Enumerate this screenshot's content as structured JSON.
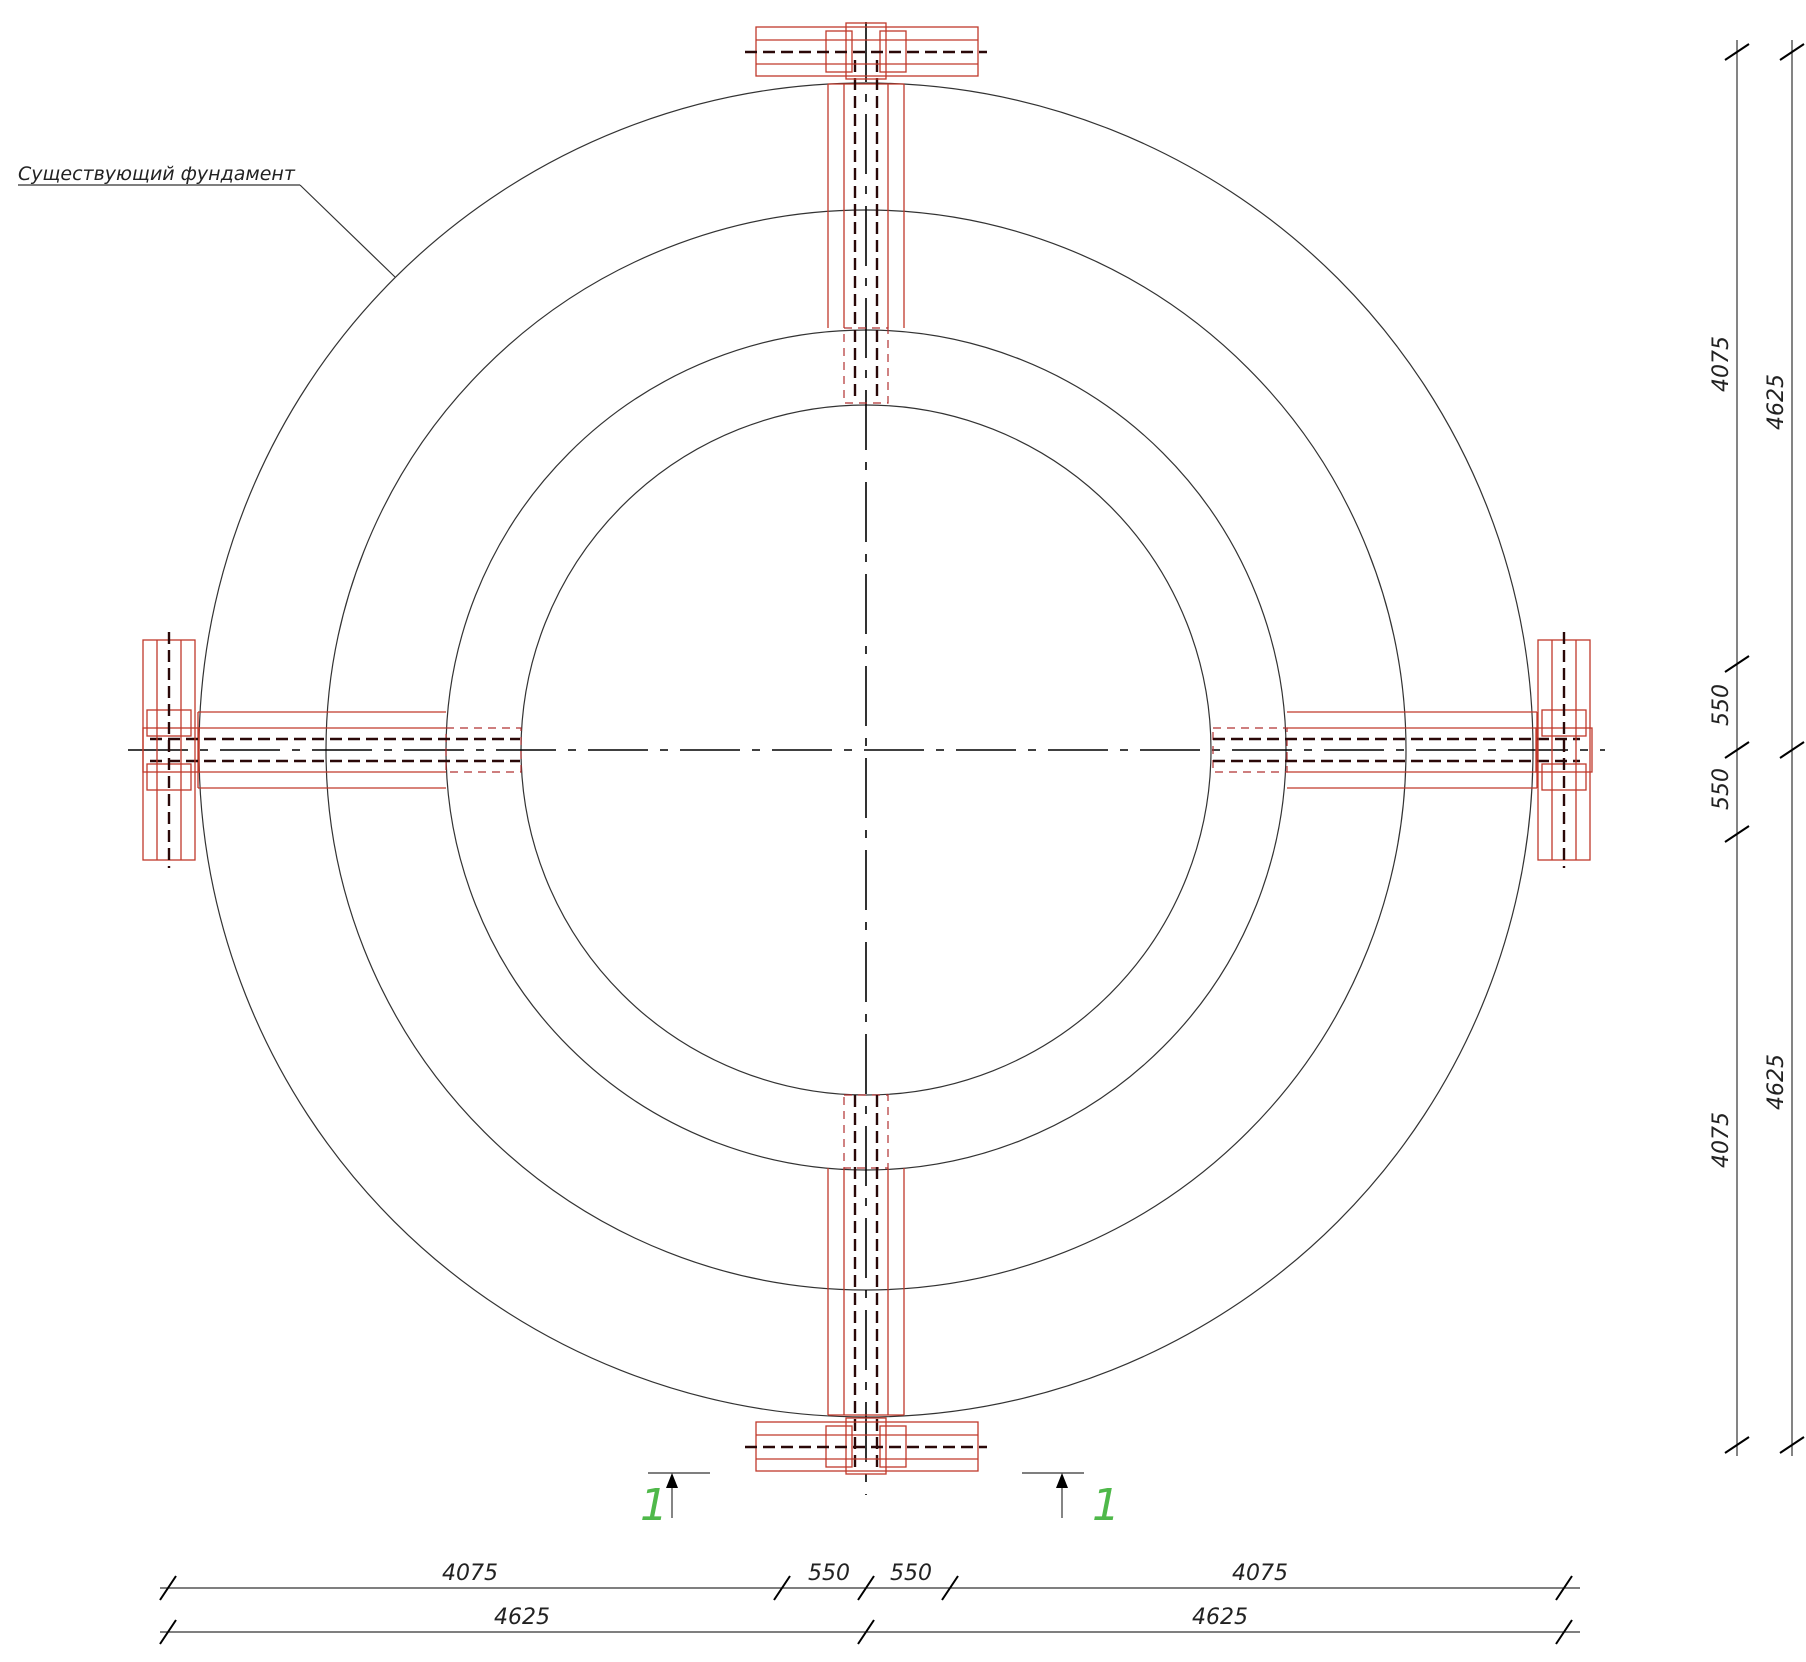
{
  "callout": {
    "label": "Существующий фундамент"
  },
  "section_marks": {
    "label": "1",
    "color": "#4fb84a"
  },
  "colors": {
    "existing": "#333333",
    "new": "#c0392b",
    "axis": "#000000"
  },
  "dimensions": {
    "bottom_row1": [
      "4075",
      "550",
      "550",
      "4075"
    ],
    "bottom_row2": [
      "4625",
      "4625"
    ],
    "right_col1": [
      "4075",
      "550",
      "550",
      "4075"
    ],
    "right_col2": [
      "4625",
      "4625"
    ]
  }
}
